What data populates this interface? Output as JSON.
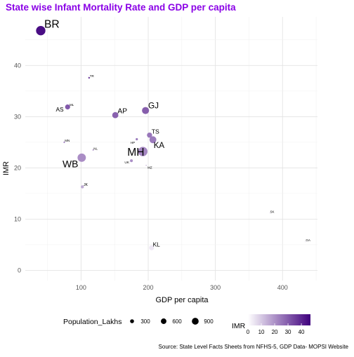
{
  "chart_data": {
    "type": "scatter",
    "title": "State wise Infant Mortality Rate and GDP per capita",
    "xlabel": "GDP per capita",
    "ylabel": "IMR",
    "caption": "Source: State Level Facts Sheets from NFHS-5, GDP Data- MOPSI Website",
    "xlim": [
      17,
      452
    ],
    "ylim": [
      -2,
      49.5
    ],
    "x_ticks": [
      100,
      200,
      300,
      400
    ],
    "y_ticks": [
      0,
      10,
      20,
      30,
      40
    ],
    "grid": true,
    "legend_placement": "bottom",
    "size_legend": {
      "title": "Population_Lakhs",
      "values": [
        300,
        600,
        900
      ]
    },
    "color_legend": {
      "title": "IMR",
      "ticks": [
        0,
        10,
        20,
        30,
        40
      ],
      "low_color": "#ffffff",
      "high_color": "#3f007d"
    },
    "title_color": "#8a00e6",
    "points": [
      {
        "label": "BR",
        "x": 40,
        "y": 46.8,
        "pop": 1230
      },
      {
        "label": "TR",
        "x": 112,
        "y": 37.6,
        "pop": 40
      },
      {
        "label": "ML",
        "x": 82,
        "y": 32.0,
        "pop": 33
      },
      {
        "label": "AS",
        "x": 80,
        "y": 31.9,
        "pop": 355
      },
      {
        "label": "AP",
        "x": 151,
        "y": 30.3,
        "pop": 530
      },
      {
        "label": "GJ",
        "x": 196,
        "y": 31.2,
        "pop": 700
      },
      {
        "label": "TS",
        "x": 202,
        "y": 26.4,
        "pop": 380
      },
      {
        "label": "KA",
        "x": 207,
        "y": 25.5,
        "pop": 670
      },
      {
        "label": "HP",
        "x": 183,
        "y": 25.6,
        "pop": 72
      },
      {
        "label": "MN",
        "x": 75,
        "y": 25.0,
        "pop": 32
      },
      {
        "label": "NL",
        "x": 118,
        "y": 23.5,
        "pop": 22
      },
      {
        "label": "MH",
        "x": 192,
        "y": 23.2,
        "pop": 1230
      },
      {
        "label": "UK",
        "x": 175,
        "y": 21.4,
        "pop": 115
      },
      {
        "label": "MZ",
        "x": 197,
        "y": 20.5,
        "pop": 12
      },
      {
        "label": "WB",
        "x": 101,
        "y": 22.0,
        "pop": 980
      },
      {
        "label": "JK",
        "x": 102,
        "y": 16.3,
        "pop": 136
      },
      {
        "label": "SK",
        "x": 381,
        "y": 11.2,
        "pop": 7
      },
      {
        "label": "KL",
        "x": 205,
        "y": 4.4,
        "pop": 350
      },
      {
        "label": "GA",
        "x": 434,
        "y": 5.6,
        "pop": 16
      }
    ]
  }
}
